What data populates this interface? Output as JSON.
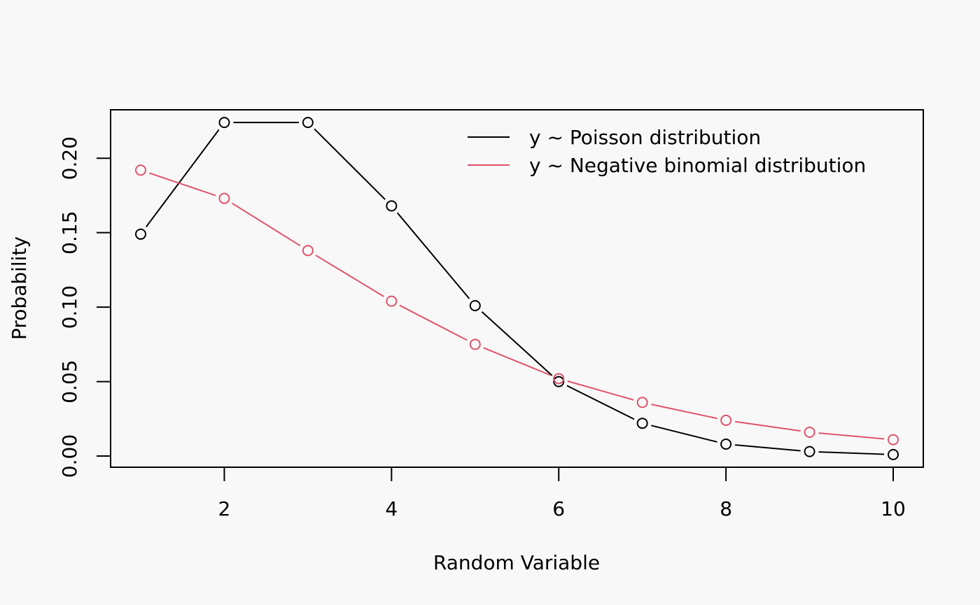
{
  "chart_data": {
    "type": "line",
    "xlabel": "Random Variable",
    "ylabel": "Probability",
    "x": [
      1,
      2,
      3,
      4,
      5,
      6,
      7,
      8,
      9,
      10
    ],
    "xlim": [
      0.64,
      10.36
    ],
    "ylim": [
      -0.0075,
      0.2325
    ],
    "x_ticks": [
      2,
      4,
      6,
      8,
      10
    ],
    "y_ticks": [
      0.0,
      0.05,
      0.1,
      0.15,
      0.2
    ],
    "x_tick_labels": [
      "2",
      "4",
      "6",
      "8",
      "10"
    ],
    "y_tick_labels": [
      "0.00",
      "0.05",
      "0.10",
      "0.15",
      "0.20"
    ],
    "grid": false,
    "legend_position": "top-right",
    "series": [
      {
        "name": "y ~ Poisson distribution",
        "color": "#000000",
        "marker": "open-circle",
        "values": [
          0.149,
          0.224,
          0.224,
          0.168,
          0.101,
          0.05,
          0.022,
          0.008,
          0.003,
          0.001
        ]
      },
      {
        "name": "y ~ Negative binomial distribution",
        "color": "#df536b",
        "marker": "open-circle",
        "values": [
          0.192,
          0.173,
          0.138,
          0.104,
          0.075,
          0.052,
          0.036,
          0.024,
          0.016,
          0.011
        ]
      }
    ]
  }
}
